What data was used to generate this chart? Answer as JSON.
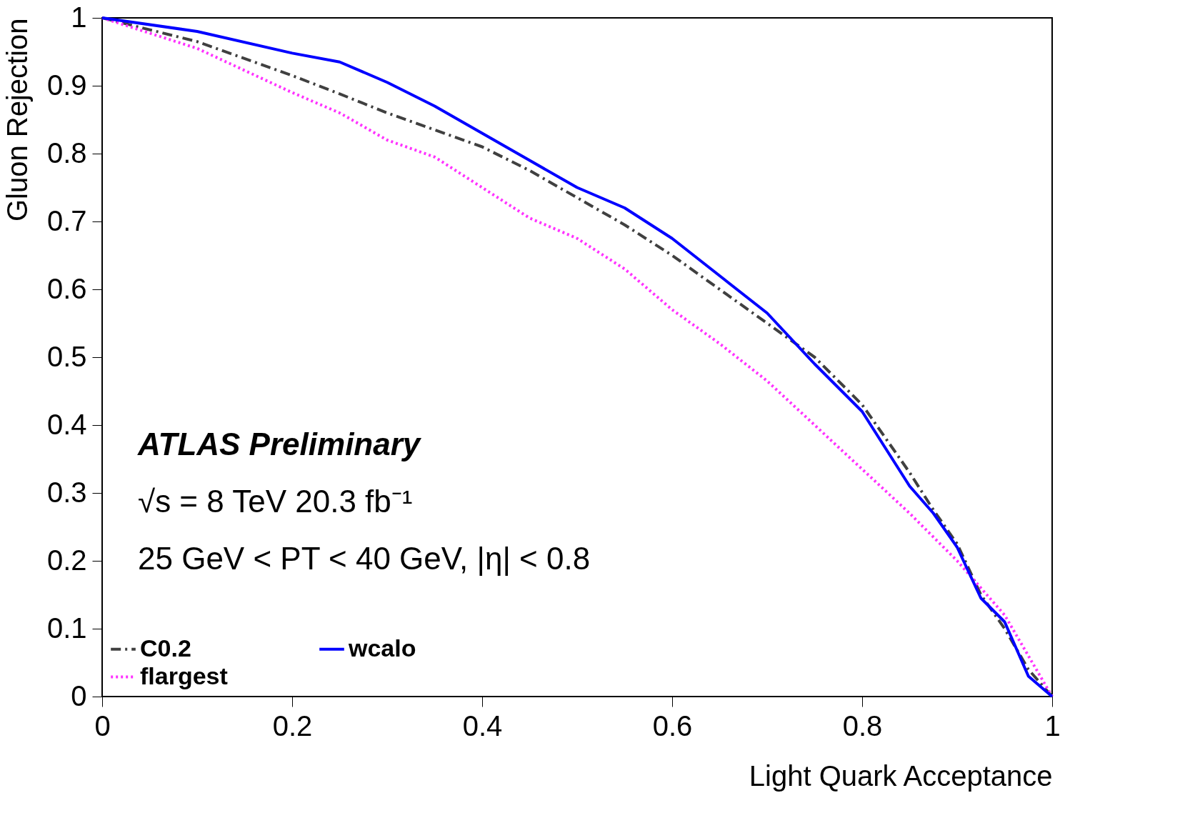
{
  "chart_data": {
    "type": "line",
    "xlabel": "Light Quark Acceptance",
    "ylabel": "Gluon Rejection",
    "xlim": [
      0,
      1
    ],
    "ylim": [
      0,
      1
    ],
    "xticks": [
      0,
      0.2,
      0.4,
      0.6,
      0.8,
      1
    ],
    "yticks": [
      0,
      0.1,
      0.2,
      0.3,
      0.4,
      0.5,
      0.6,
      0.7,
      0.8,
      0.9,
      1
    ],
    "x": [
      0,
      0.1,
      0.2,
      0.25,
      0.3,
      0.35,
      0.4,
      0.45,
      0.5,
      0.55,
      0.6,
      0.65,
      0.7,
      0.75,
      0.8,
      0.85,
      0.875,
      0.9,
      0.925,
      0.95,
      0.975,
      1
    ],
    "series": [
      {
        "name": "C0.2",
        "color": "#404040",
        "line_style": "dashed",
        "values": [
          1,
          0.965,
          0.915,
          0.888,
          0.86,
          0.835,
          0.81,
          0.775,
          0.735,
          0.695,
          0.65,
          0.6,
          0.55,
          0.5,
          0.43,
          0.33,
          0.275,
          0.225,
          0.15,
          0.1,
          0.04,
          0
        ]
      },
      {
        "name": "flargest",
        "color": "#ff33ff",
        "line_style": "dotted",
        "values": [
          1,
          0.955,
          0.89,
          0.86,
          0.82,
          0.795,
          0.75,
          0.705,
          0.675,
          0.63,
          0.57,
          0.52,
          0.465,
          0.4,
          0.335,
          0.27,
          0.235,
          0.2,
          0.16,
          0.12,
          0.06,
          0
        ]
      },
      {
        "name": "wcalo",
        "color": "#0000ff",
        "line_style": "solid",
        "values": [
          1,
          0.98,
          0.948,
          0.935,
          0.905,
          0.87,
          0.83,
          0.79,
          0.75,
          0.72,
          0.675,
          0.62,
          0.565,
          0.49,
          0.42,
          0.31,
          0.27,
          0.22,
          0.145,
          0.11,
          0.03,
          0
        ]
      }
    ],
    "legend": "bottom left",
    "grid": false,
    "annotations": [
      "ATLAS Preliminary",
      "√s = 8 TeV    20.3 fb⁻¹",
      "25 GeV < PT < 40 GeV, |η| < 0.8"
    ]
  }
}
